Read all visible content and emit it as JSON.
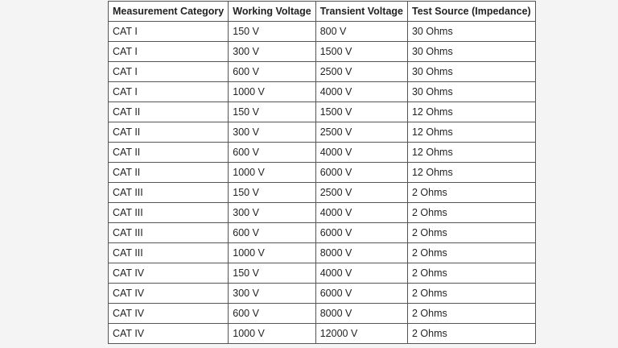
{
  "table": {
    "headers": [
      "Measurement Category",
      "Working Voltage",
      "Transient Voltage",
      "Test Source (Impedance)"
    ],
    "rows": [
      [
        "CAT I",
        "150 V",
        "800 V",
        "30 Ohms"
      ],
      [
        "CAT I",
        "300 V",
        "1500 V",
        "30 Ohms"
      ],
      [
        "CAT I",
        "600 V",
        "2500 V",
        "30 Ohms"
      ],
      [
        "CAT I",
        "1000 V",
        "4000 V",
        "30 Ohms"
      ],
      [
        "CAT II",
        "150 V",
        "1500 V",
        "12 Ohms"
      ],
      [
        "CAT II",
        "300 V",
        "2500 V",
        "12 Ohms"
      ],
      [
        "CAT II",
        "600 V",
        "4000 V",
        "12 Ohms"
      ],
      [
        "CAT II",
        "1000 V",
        "6000 V",
        "12 Ohms"
      ],
      [
        "CAT III",
        "150 V",
        "2500 V",
        "2 Ohms"
      ],
      [
        "CAT III",
        "300 V",
        "4000 V",
        "2 Ohms"
      ],
      [
        "CAT III",
        "600 V",
        "6000 V",
        "2 Ohms"
      ],
      [
        "CAT III",
        "1000 V",
        "8000 V",
        "2 Ohms"
      ],
      [
        "CAT IV",
        "150 V",
        "4000 V",
        "2 Ohms"
      ],
      [
        "CAT IV",
        "300 V",
        "6000 V",
        "2 Ohms"
      ],
      [
        "CAT IV",
        "600 V",
        "8000 V",
        "2 Ohms"
      ],
      [
        "CAT IV",
        "1000 V",
        "12000 V",
        "2 Ohms"
      ]
    ]
  }
}
